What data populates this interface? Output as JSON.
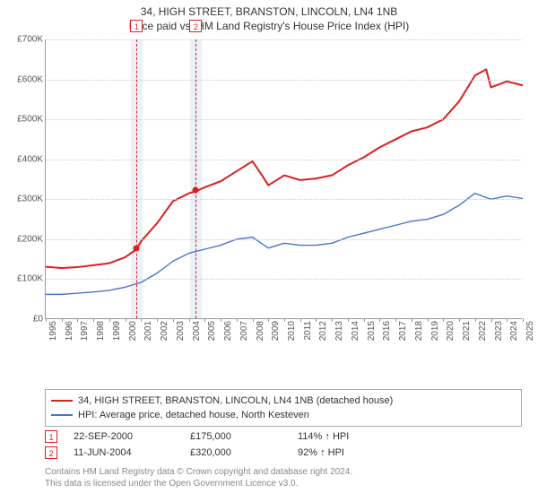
{
  "title": {
    "line1": "34, HIGH STREET, BRANSTON, LINCOLN, LN4 1NB",
    "line2": "Price paid vs. HM Land Registry's House Price Index (HPI)"
  },
  "chart": {
    "type": "line",
    "background_color": "#ffffff",
    "grid_color": "#cccccc",
    "axis_color": "#999999",
    "x": {
      "min": 1995,
      "max": 2025,
      "tick_step": 1,
      "label_fontsize": 10,
      "label_rotation": -90
    },
    "y": {
      "min": 0,
      "max": 700000,
      "tick_step": 100000,
      "prefix": "£",
      "suffix_thousands": "K",
      "label_fontsize": 10
    },
    "markers": [
      {
        "id": "1",
        "x": 2000.72,
        "band_half": 0.35
      },
      {
        "id": "2",
        "x": 2004.44,
        "band_half": 0.35
      }
    ],
    "price_points": [
      {
        "x": 2000.72,
        "y": 175000
      },
      {
        "x": 2004.44,
        "y": 320000
      }
    ],
    "series": [
      {
        "name": "property",
        "label": "34, HIGH STREET, BRANSTON, LINCOLN, LN4 1NB (detached house)",
        "color": "#d92020",
        "line_width": 2,
        "data": [
          [
            1995,
            131000
          ],
          [
            1996,
            128000
          ],
          [
            1997,
            130000
          ],
          [
            1998,
            135000
          ],
          [
            1999,
            140000
          ],
          [
            2000,
            155000
          ],
          [
            2000.72,
            175000
          ],
          [
            2001,
            195000
          ],
          [
            2002,
            240000
          ],
          [
            2003,
            295000
          ],
          [
            2004,
            315000
          ],
          [
            2004.44,
            320000
          ],
          [
            2005,
            330000
          ],
          [
            2006,
            345000
          ],
          [
            2007,
            370000
          ],
          [
            2008,
            395000
          ],
          [
            2008.6,
            360000
          ],
          [
            2009,
            335000
          ],
          [
            2010,
            360000
          ],
          [
            2011,
            348000
          ],
          [
            2012,
            352000
          ],
          [
            2013,
            360000
          ],
          [
            2014,
            385000
          ],
          [
            2015,
            405000
          ],
          [
            2016,
            430000
          ],
          [
            2017,
            450000
          ],
          [
            2018,
            470000
          ],
          [
            2019,
            480000
          ],
          [
            2020,
            500000
          ],
          [
            2021,
            545000
          ],
          [
            2022,
            610000
          ],
          [
            2022.7,
            625000
          ],
          [
            2023,
            580000
          ],
          [
            2024,
            595000
          ],
          [
            2025,
            585000
          ]
        ]
      },
      {
        "name": "hpi",
        "label": "HPI: Average price, detached house, North Kesteven",
        "color": "#4a74c9",
        "line_width": 1.4,
        "data": [
          [
            1995,
            62000
          ],
          [
            1996,
            62000
          ],
          [
            1997,
            65000
          ],
          [
            1998,
            68000
          ],
          [
            1999,
            72000
          ],
          [
            2000,
            80000
          ],
          [
            2001,
            92000
          ],
          [
            2002,
            115000
          ],
          [
            2003,
            145000
          ],
          [
            2004,
            165000
          ],
          [
            2005,
            175000
          ],
          [
            2006,
            185000
          ],
          [
            2007,
            200000
          ],
          [
            2008,
            205000
          ],
          [
            2009,
            178000
          ],
          [
            2010,
            190000
          ],
          [
            2011,
            185000
          ],
          [
            2012,
            185000
          ],
          [
            2013,
            190000
          ],
          [
            2014,
            205000
          ],
          [
            2015,
            215000
          ],
          [
            2016,
            225000
          ],
          [
            2017,
            235000
          ],
          [
            2018,
            245000
          ],
          [
            2019,
            250000
          ],
          [
            2020,
            262000
          ],
          [
            2021,
            285000
          ],
          [
            2022,
            315000
          ],
          [
            2023,
            300000
          ],
          [
            2024,
            308000
          ],
          [
            2025,
            302000
          ]
        ]
      }
    ]
  },
  "legend": {
    "border_color": "#aaaaaa",
    "items": [
      {
        "color": "#d92020",
        "label": "34, HIGH STREET, BRANSTON, LINCOLN, LN4 1NB (detached house)"
      },
      {
        "color": "#4a74c9",
        "label": "HPI: Average price, detached house, North Kesteven"
      }
    ]
  },
  "transactions": [
    {
      "id": "1",
      "date": "22-SEP-2000",
      "price": "£175,000",
      "pct": "114%",
      "arrow": "↑",
      "hpi_label": "HPI"
    },
    {
      "id": "2",
      "date": "11-JUN-2004",
      "price": "£320,000",
      "pct": "92%",
      "arrow": "↑",
      "hpi_label": "HPI"
    }
  ],
  "footer": {
    "line1": "Contains HM Land Registry data © Crown copyright and database right 2024.",
    "line2": "This data is licensed under the Open Government Licence v3.0."
  }
}
